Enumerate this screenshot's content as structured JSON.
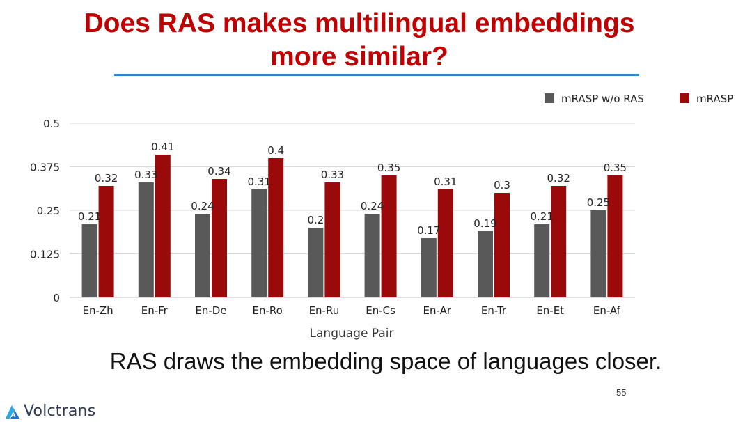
{
  "slide": {
    "title_line1": "Does RAS makes multilingual embeddings",
    "title_line2": "more similar?",
    "caption": "RAS draws the embedding space of languages closer.",
    "page_number": "55",
    "brand_name": "Volctrans"
  },
  "colors": {
    "title": "#c00000",
    "rule": "#2f86d2",
    "series_gray": "#595959",
    "series_red": "#9b0a0a"
  },
  "chart_data": {
    "type": "bar",
    "categories": [
      "En-Zh",
      "En-Fr",
      "En-De",
      "En-Ro",
      "En-Ru",
      "En-Cs",
      "En-Ar",
      "En-Tr",
      "En-Et",
      "En-Af"
    ],
    "series": [
      {
        "name": "mRASP w/o RAS",
        "color": "#595959",
        "values": [
          0.21,
          0.33,
          0.24,
          0.31,
          0.2,
          0.24,
          0.17,
          0.19,
          0.21,
          0.25
        ]
      },
      {
        "name": "mRASP",
        "color": "#9b0a0a",
        "values": [
          0.32,
          0.41,
          0.34,
          0.4,
          0.33,
          0.35,
          0.31,
          0.3,
          0.32,
          0.35
        ]
      }
    ],
    "title": "",
    "xlabel": "Language Pair",
    "ylabel": "",
    "ylim": [
      0,
      0.5
    ],
    "yticks": [
      0,
      0.125,
      0.25,
      0.375,
      0.5
    ],
    "ytick_labels": [
      "0",
      "0.125",
      "0.25",
      "0.375",
      "0.5"
    ],
    "grid": true,
    "legend_position": "top-right"
  }
}
